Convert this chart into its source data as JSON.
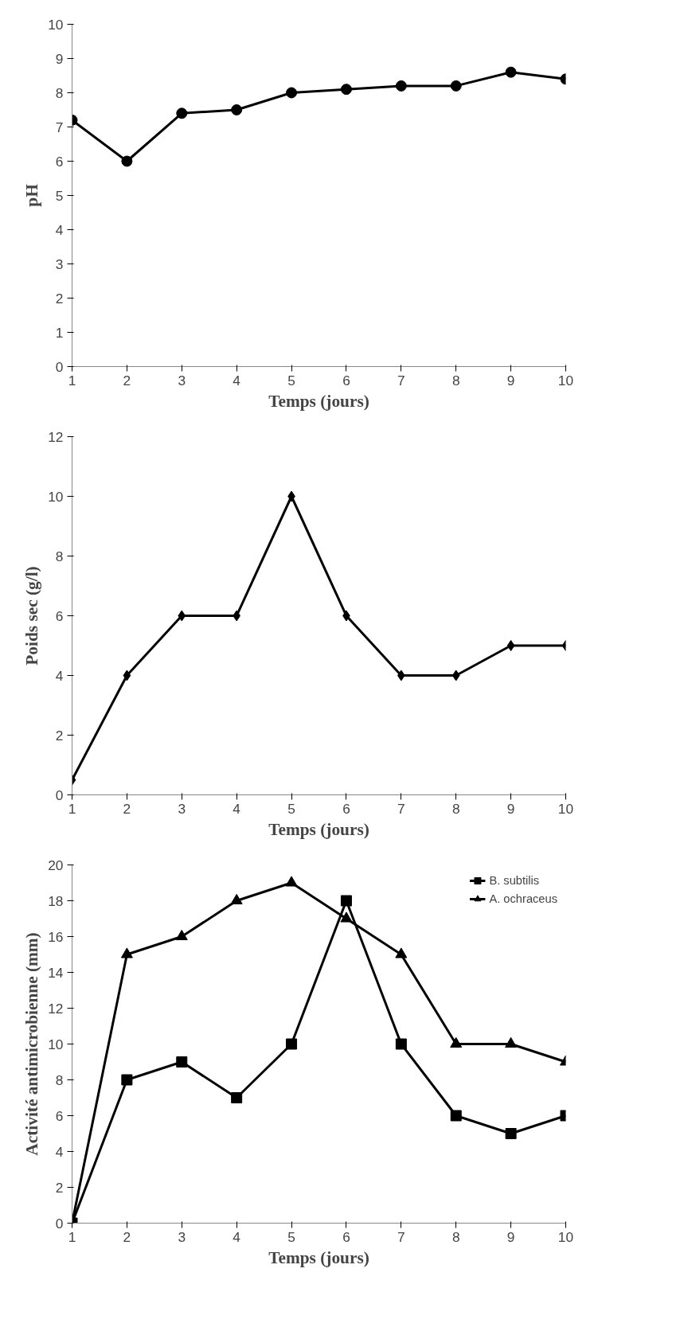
{
  "chart_data": [
    {
      "type": "line",
      "ylabel": "pH",
      "xlabel": "Temps (jours)",
      "x": [
        1,
        2,
        3,
        4,
        5,
        6,
        7,
        8,
        9,
        10
      ],
      "xlim": [
        1,
        10
      ],
      "xticks": [
        1,
        2,
        3,
        4,
        5,
        6,
        7,
        8,
        9,
        10
      ],
      "ylim": [
        0,
        10
      ],
      "yticks": [
        0,
        1,
        2,
        3,
        4,
        5,
        6,
        7,
        8,
        9,
        10
      ],
      "grid": false,
      "legend": false,
      "marker": "circle",
      "series": [
        {
          "color": "#000000",
          "values": [
            7.2,
            6.0,
            7.4,
            7.5,
            8.0,
            8.1,
            8.2,
            8.2,
            8.6,
            8.4
          ]
        }
      ]
    },
    {
      "type": "line",
      "ylabel": "Poids sec (g/l)",
      "xlabel": "Temps (jours)",
      "x": [
        1,
        2,
        3,
        4,
        5,
        6,
        7,
        8,
        9,
        10
      ],
      "xlim": [
        1,
        10
      ],
      "xticks": [
        1,
        2,
        3,
        4,
        5,
        6,
        7,
        8,
        9,
        10
      ],
      "ylim": [
        0,
        12
      ],
      "yticks": [
        0,
        2,
        4,
        6,
        8,
        10,
        12
      ],
      "grid": false,
      "legend": false,
      "marker": "diamond",
      "series": [
        {
          "color": "#000000",
          "values": [
            0.5,
            4,
            6,
            6,
            10,
            6,
            4,
            4,
            5,
            5
          ]
        }
      ]
    },
    {
      "type": "line",
      "ylabel": "Activité antimicrobienne (mm)",
      "xlabel": "Temps (jours)",
      "x": [
        1,
        2,
        3,
        4,
        5,
        6,
        7,
        8,
        9,
        10
      ],
      "xlim": [
        1,
        10
      ],
      "xticks": [
        1,
        2,
        3,
        4,
        5,
        6,
        7,
        8,
        9,
        10
      ],
      "ylim": [
        0,
        20
      ],
      "yticks": [
        0,
        2,
        4,
        6,
        8,
        10,
        12,
        14,
        16,
        18,
        20
      ],
      "grid": false,
      "legend": "top right",
      "series": [
        {
          "name": "B. subtilis",
          "color": "#000000",
          "marker": "square",
          "values": [
            0,
            8,
            9,
            7,
            10,
            18,
            10,
            6,
            5,
            6
          ]
        },
        {
          "name": "A. ochraceus",
          "color": "#000000",
          "marker": "triangle",
          "values": [
            0,
            15,
            16,
            18,
            19,
            17,
            15,
            10,
            10,
            9
          ]
        }
      ]
    }
  ]
}
